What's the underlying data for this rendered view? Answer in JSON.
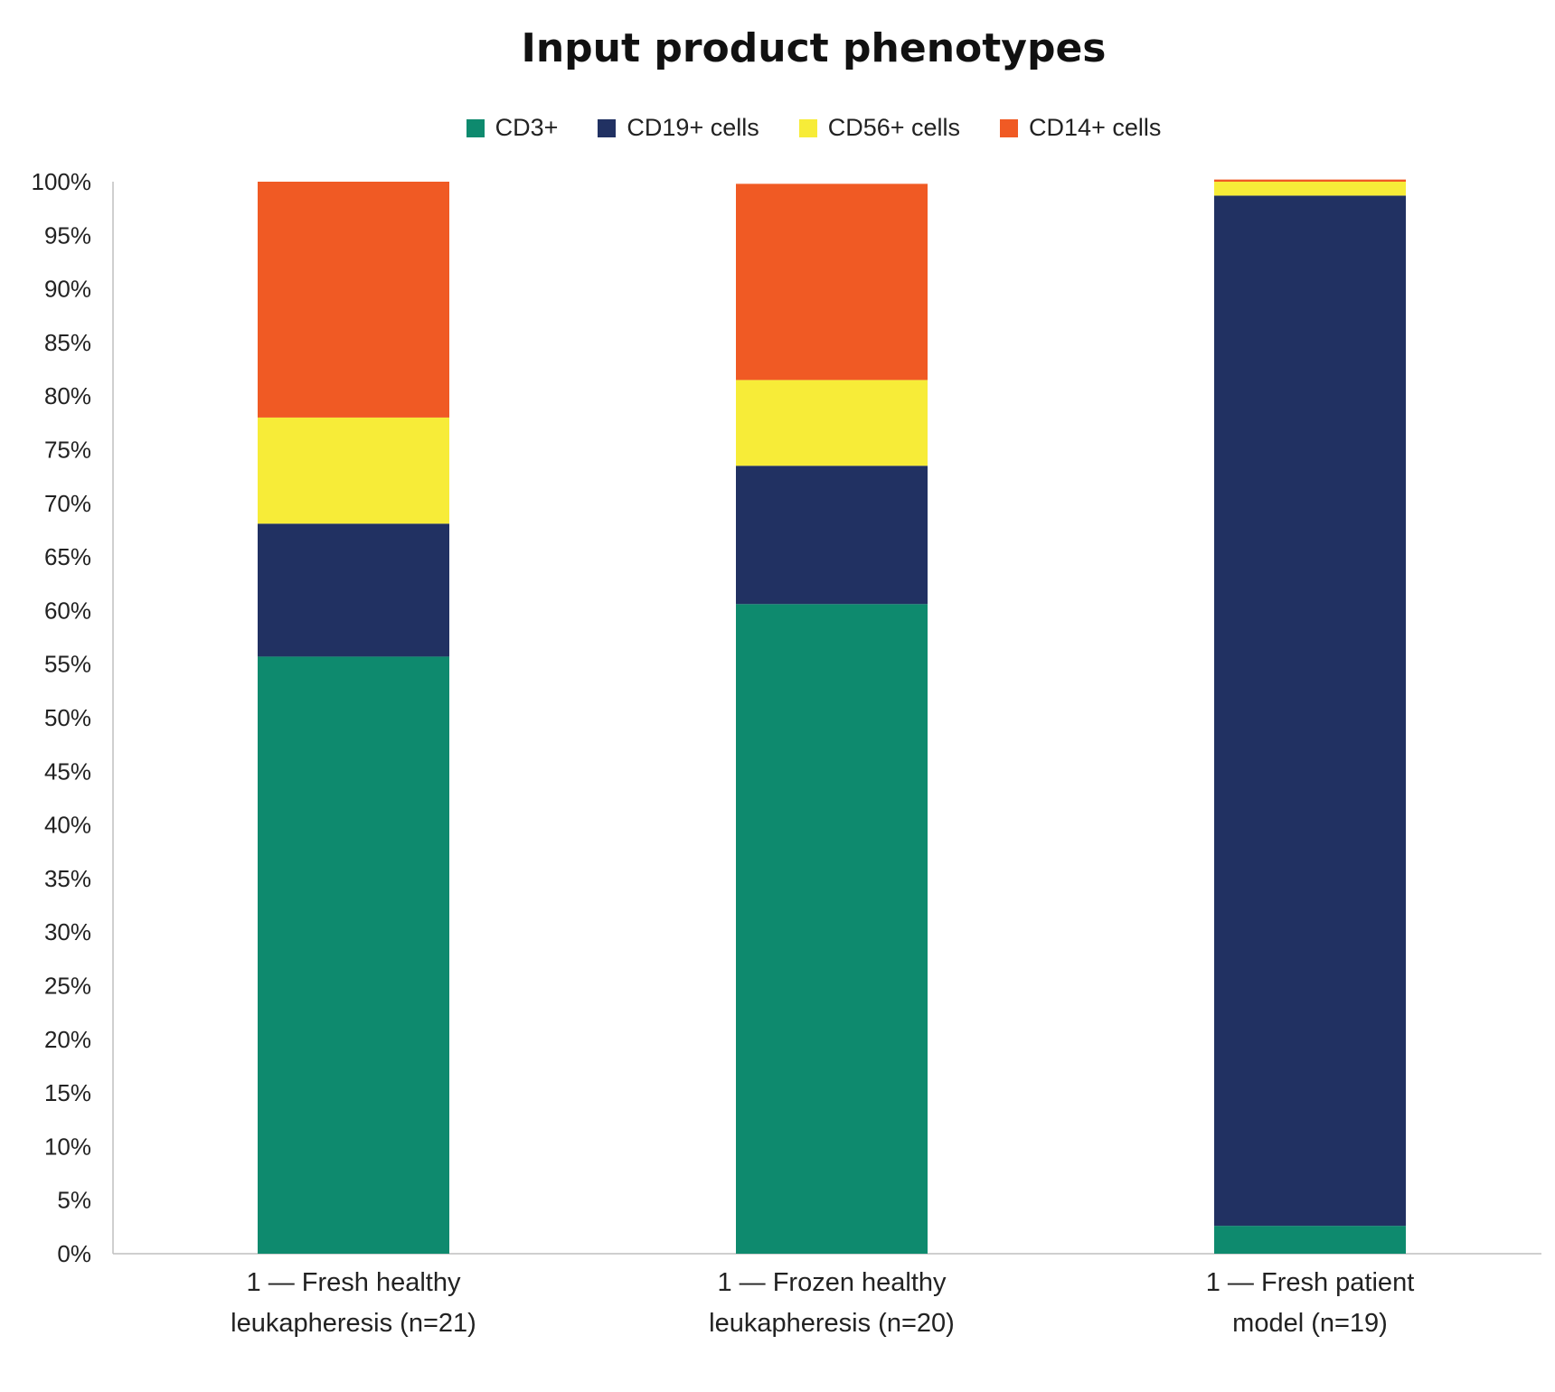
{
  "chart_data": {
    "type": "bar",
    "stacked": true,
    "title": "Input product phenotypes",
    "categories": [
      [
        "1 — Fresh healthy",
        "leukapheresis (n=21)"
      ],
      [
        "1 — Frozen healthy",
        "leukapheresis (n=20)"
      ],
      [
        "1 — Fresh patient",
        "model (n=19)"
      ]
    ],
    "series": [
      {
        "name": "CD3+",
        "color": "#0e8a6e",
        "values": [
          55.7,
          60.6,
          2.6
        ]
      },
      {
        "name": "CD19+ cells",
        "color": "#213162",
        "values": [
          12.4,
          12.9,
          96.1
        ]
      },
      {
        "name": "CD56+ cells",
        "color": "#f7ec38",
        "values": [
          9.9,
          8.0,
          1.3
        ]
      },
      {
        "name": "CD14+ cells",
        "color": "#f05a24",
        "values": [
          22.0,
          18.3,
          0.2
        ]
      }
    ],
    "ylim": [
      0,
      100
    ],
    "yticks": [
      "0%",
      "5%",
      "10%",
      "15%",
      "20%",
      "25%",
      "30%",
      "35%",
      "40%",
      "45%",
      "50%",
      "55%",
      "60%",
      "65%",
      "70%",
      "75%",
      "80%",
      "85%",
      "90%",
      "95%",
      "100%"
    ],
    "xlabel": "",
    "ylabel": "",
    "legend_position": "top",
    "grid": false
  }
}
